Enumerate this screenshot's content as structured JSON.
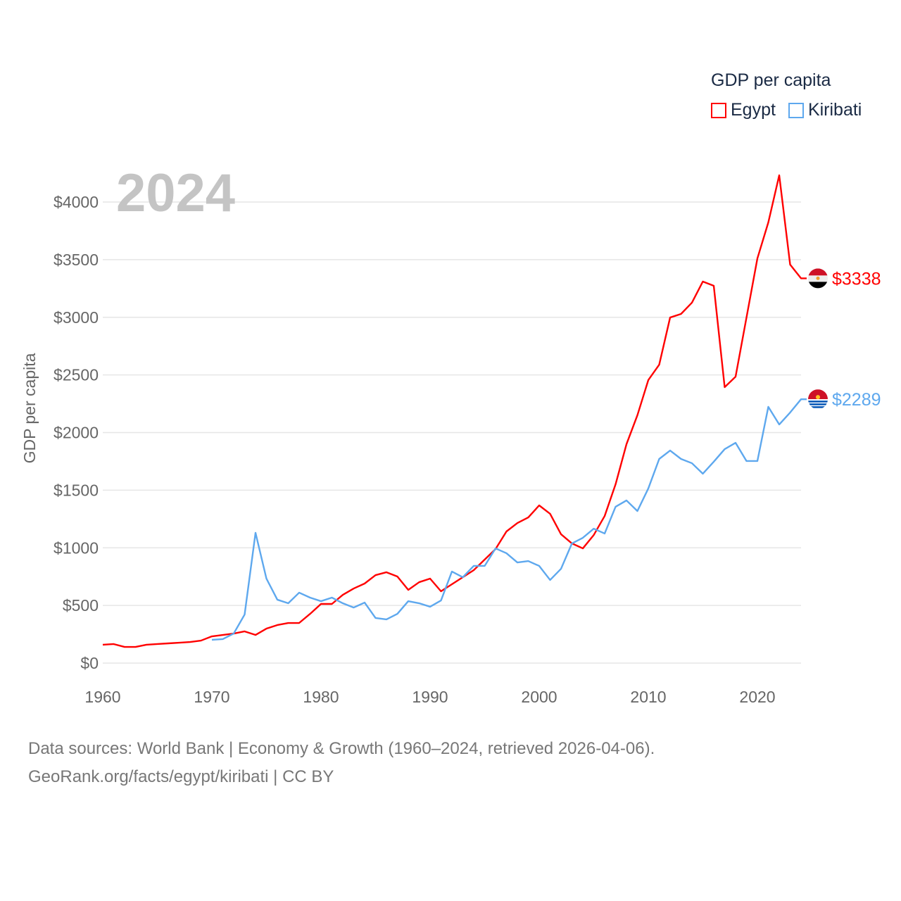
{
  "chart_data": {
    "type": "line",
    "title": "2024",
    "ylabel": "GDP per capita",
    "xlabel": "",
    "xlim": [
      1960,
      2024
    ],
    "ylim": [
      0,
      4000
    ],
    "grid": true,
    "x_ticks": [
      "1960",
      "1970",
      "1980",
      "1990",
      "2000",
      "2010",
      "2020"
    ],
    "y_ticks": [
      "$0",
      "$500",
      "$1000",
      "$1500",
      "$2000",
      "$2500",
      "$3000",
      "$3500",
      "$4000"
    ],
    "legend": {
      "title": "GDP per capita",
      "position": "top-right"
    },
    "series": [
      {
        "name": "Egypt",
        "color": "#ff0000",
        "start_year": 1960,
        "end_label": "$3338",
        "values": [
          159,
          165,
          140,
          140,
          159,
          165,
          171,
          177,
          183,
          195,
          232,
          244,
          256,
          275,
          244,
          299,
          330,
          348,
          348,
          427,
          513,
          513,
          592,
          647,
          690,
          763,
          788,
          751,
          635,
          702,
          733,
          623,
          684,
          745,
          806,
          898,
          989,
          1142,
          1215,
          1264,
          1368,
          1295,
          1118,
          1038,
          995,
          1111,
          1276,
          1551,
          1899,
          2150,
          2455,
          2589,
          2998,
          3029,
          3127,
          3310,
          3273,
          2394,
          2485,
          2998,
          3511,
          3823,
          4232,
          3457,
          3338
        ]
      },
      {
        "name": "Kiribati",
        "color": "#5ea8ee",
        "start_year": 1970,
        "end_label": "$2289",
        "values": [
          202,
          208,
          256,
          421,
          1130,
          733,
          550,
          519,
          611,
          568,
          537,
          568,
          519,
          482,
          525,
          391,
          379,
          427,
          537,
          519,
          489,
          543,
          794,
          745,
          843,
          843,
          995,
          953,
          873,
          885,
          843,
          721,
          818,
          1038,
          1087,
          1166,
          1124,
          1356,
          1411,
          1319,
          1515,
          1771,
          1844,
          1771,
          1734,
          1643,
          1747,
          1856,
          1911,
          1753,
          1753,
          2223,
          2070,
          2174,
          2289
        ]
      }
    ]
  },
  "footer": {
    "line1": "Data sources: World Bank | Economy & Growth (1960–2024, retrieved 2026-04-06).",
    "line2": "GeoRank.org/facts/egypt/kiribati | CC BY"
  }
}
